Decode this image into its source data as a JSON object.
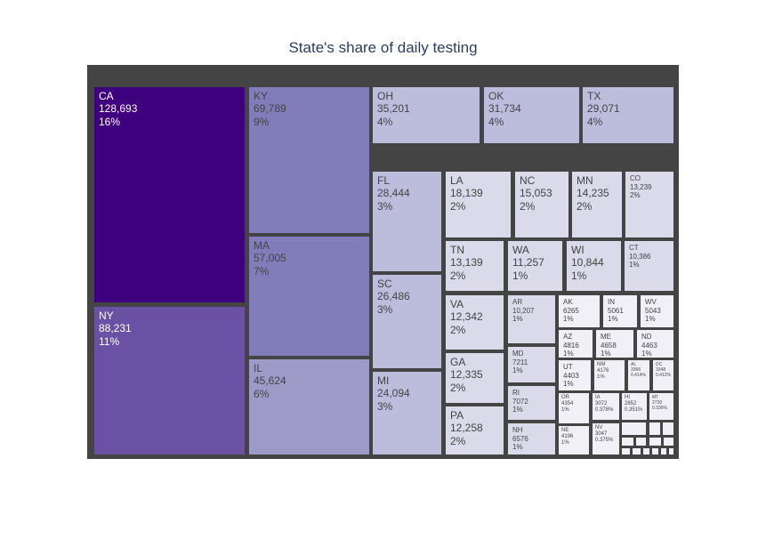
{
  "chart_data": {
    "type": "treemap",
    "title": "State's share of daily testing",
    "colorscale": [
      "#f2f0f7",
      "#dadaeb",
      "#bcbddc",
      "#9e9ac8",
      "#807dba",
      "#6a51a3",
      "#4a1486",
      "#3f007d"
    ],
    "items": [
      {
        "label": "CA",
        "value": 128693,
        "value_text": "128,693",
        "percent": "16%"
      },
      {
        "label": "NY",
        "value": 88231,
        "value_text": "88,231",
        "percent": "11%"
      },
      {
        "label": "KY",
        "value": 69789,
        "value_text": "69,789",
        "percent": "9%"
      },
      {
        "label": "MA",
        "value": 57005,
        "value_text": "57,005",
        "percent": "7%"
      },
      {
        "label": "IL",
        "value": 45624,
        "value_text": "45,624",
        "percent": "6%"
      },
      {
        "label": "OH",
        "value": 35201,
        "value_text": "35,201",
        "percent": "4%"
      },
      {
        "label": "OK",
        "value": 31734,
        "value_text": "31,734",
        "percent": "4%"
      },
      {
        "label": "TX",
        "value": 29071,
        "value_text": "29,071",
        "percent": "4%"
      },
      {
        "label": "FL",
        "value": 28444,
        "value_text": "28,444",
        "percent": "3%"
      },
      {
        "label": "SC",
        "value": 26486,
        "value_text": "26,486",
        "percent": "3%"
      },
      {
        "label": "MI",
        "value": 24094,
        "value_text": "24,094",
        "percent": "3%"
      },
      {
        "label": "LA",
        "value": 18139,
        "value_text": "18,139",
        "percent": "2%"
      },
      {
        "label": "NC",
        "value": 15053,
        "value_text": "15,053",
        "percent": "2%"
      },
      {
        "label": "MN",
        "value": 14235,
        "value_text": "14,235",
        "percent": "2%"
      },
      {
        "label": "CO",
        "value": 13239,
        "value_text": "13,239",
        "percent": "2%"
      },
      {
        "label": "TN",
        "value": 13139,
        "value_text": "13,139",
        "percent": "2%"
      },
      {
        "label": "VA",
        "value": 12342,
        "value_text": "12,342",
        "percent": "2%"
      },
      {
        "label": "GA",
        "value": 12335,
        "value_text": "12,335",
        "percent": "2%"
      },
      {
        "label": "PA",
        "value": 12258,
        "value_text": "12,258",
        "percent": "2%"
      },
      {
        "label": "WA",
        "value": 11257,
        "value_text": "11,257",
        "percent": "1%"
      },
      {
        "label": "WI",
        "value": 10844,
        "value_text": "10,844",
        "percent": "1%"
      },
      {
        "label": "CT",
        "value": 10386,
        "value_text": "10,386",
        "percent": "1%"
      },
      {
        "label": "AR",
        "value": 10207,
        "value_text": "10,207",
        "percent": "1%"
      },
      {
        "label": "MD",
        "value": 7211,
        "value_text": "7211",
        "percent": "1%"
      },
      {
        "label": "RI",
        "value": 7072,
        "value_text": "7072",
        "percent": "1%"
      },
      {
        "label": "NH",
        "value": 6576,
        "value_text": "6576",
        "percent": "1%"
      },
      {
        "label": "AK",
        "value": 6265,
        "value_text": "6265",
        "percent": "1%"
      },
      {
        "label": "IN",
        "value": 5061,
        "value_text": "5061",
        "percent": "1%"
      },
      {
        "label": "WV",
        "value": 5043,
        "value_text": "5043",
        "percent": "1%"
      },
      {
        "label": "AZ",
        "value": 4816,
        "value_text": "4816",
        "percent": "1%"
      },
      {
        "label": "ME",
        "value": 4658,
        "value_text": "4658",
        "percent": "1%"
      },
      {
        "label": "ND",
        "value": 4463,
        "value_text": "4463",
        "percent": "1%"
      },
      {
        "label": "UT",
        "value": 4403,
        "value_text": "4403",
        "percent": "1%"
      },
      {
        "label": "OR",
        "value": 4354,
        "value_text": "4354",
        "percent": "1%"
      },
      {
        "label": "NE",
        "value": 4196,
        "value_text": "4196",
        "percent": "1%"
      },
      {
        "label": "NM",
        "value": 4176,
        "value_text": "4176",
        "percent": "1%"
      },
      {
        "label": "NV",
        "value": 3047,
        "value_text": "3047",
        "percent": "0.375%"
      },
      {
        "label": "AL",
        "value": 3366,
        "value_text": "3366",
        "percent": "0.414%"
      },
      {
        "label": "DC",
        "value": 3348,
        "value_text": "3348",
        "percent": "0.412%"
      },
      {
        "label": "IA",
        "value": 3072,
        "value_text": "3072",
        "percent": "0.378%"
      },
      {
        "label": "HI",
        "value": 2852,
        "value_text": "2852",
        "percent": "0.351%"
      },
      {
        "label": "MT",
        "value": 2730,
        "value_text": "2730",
        "percent": "0.336%"
      }
    ]
  }
}
